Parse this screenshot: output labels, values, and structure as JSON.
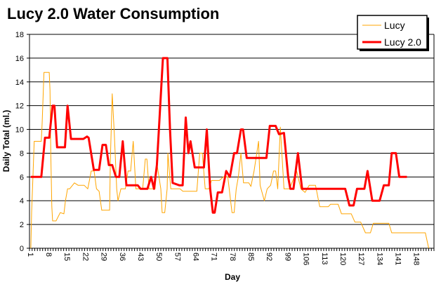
{
  "chart_data": {
    "type": "line",
    "title": "Lucy 2.0 Water Consumption",
    "xlabel": "Day",
    "ylabel": "Daily Total (ml.)",
    "ylim": [
      0,
      18
    ],
    "yticks": [
      0,
      2,
      4,
      6,
      8,
      10,
      12,
      14,
      16,
      18
    ],
    "xlim": [
      1,
      154
    ],
    "xticks": [
      1,
      8,
      15,
      22,
      29,
      36,
      43,
      50,
      57,
      64,
      71,
      78,
      85,
      92,
      99,
      106,
      113,
      120,
      127,
      134,
      141,
      148
    ],
    "grid": "horizontal",
    "legend_position": "top-right",
    "series": [
      {
        "name": "Lucy",
        "color": "#FFA500",
        "points": [
          [
            1,
            0
          ],
          [
            1.3,
            3
          ],
          [
            1.8,
            6
          ],
          [
            2.3,
            9
          ],
          [
            5,
            9
          ],
          [
            5.3,
            10.5
          ],
          [
            5.6,
            12.3
          ],
          [
            6,
            14.8
          ],
          [
            8,
            14.8
          ],
          [
            8.3,
            13.3
          ],
          [
            8.6,
            8
          ],
          [
            9,
            3.5
          ],
          [
            9.3,
            2.3
          ],
          [
            10.6,
            2.3
          ],
          [
            12.2,
            3
          ],
          [
            13.6,
            2.9
          ],
          [
            14.2,
            4
          ],
          [
            15,
            5
          ],
          [
            15.8,
            5
          ],
          [
            17.6,
            5.5
          ],
          [
            19,
            5.3
          ],
          [
            21.3,
            5.3
          ],
          [
            22.7,
            5
          ],
          [
            24,
            6.5
          ],
          [
            25.1,
            6.5
          ],
          [
            26,
            5
          ],
          [
            27,
            4.8
          ],
          [
            28,
            3.2
          ],
          [
            31,
            3.2
          ],
          [
            31.3,
            7.5
          ],
          [
            32,
            13
          ],
          [
            32.8,
            9.6
          ],
          [
            33.7,
            5
          ],
          [
            34.2,
            4
          ],
          [
            35.3,
            5
          ],
          [
            37,
            5
          ],
          [
            38,
            6.5
          ],
          [
            39,
            6.5
          ],
          [
            40,
            9
          ],
          [
            41,
            5
          ],
          [
            43.6,
            5
          ],
          [
            44.6,
            7.5
          ],
          [
            45.2,
            7.5
          ],
          [
            46,
            5
          ],
          [
            48.3,
            5
          ],
          [
            49.1,
            7
          ],
          [
            50.5,
            5
          ],
          [
            51,
            3
          ],
          [
            52,
            3
          ],
          [
            52.9,
            5
          ],
          [
            53.2,
            8
          ],
          [
            54.3,
            5
          ],
          [
            57.8,
            5
          ],
          [
            58.9,
            4.8
          ],
          [
            64.2,
            4.8
          ],
          [
            65.3,
            8
          ],
          [
            66.3,
            8
          ],
          [
            67.4,
            5
          ],
          [
            68.8,
            5
          ],
          [
            69.8,
            5.7
          ],
          [
            72.8,
            5.7
          ],
          [
            74.3,
            6
          ],
          [
            76,
            6
          ],
          [
            77.6,
            3
          ],
          [
            78.4,
            3
          ],
          [
            79.2,
            5
          ],
          [
            80,
            6
          ],
          [
            81,
            8
          ],
          [
            82,
            5.5
          ],
          [
            84,
            5.5
          ],
          [
            84.8,
            5.2
          ],
          [
            86,
            6.5
          ],
          [
            87.7,
            9
          ],
          [
            88.3,
            5.3
          ],
          [
            89.9,
            4
          ],
          [
            91,
            5
          ],
          [
            92.3,
            5.3
          ],
          [
            93.4,
            6.5
          ],
          [
            94.2,
            6.5
          ],
          [
            95,
            5
          ],
          [
            96,
            10.2
          ],
          [
            97.4,
            5
          ],
          [
            99.5,
            5
          ],
          [
            102.2,
            6.5
          ],
          [
            103.8,
            5
          ],
          [
            105.4,
            4.7
          ],
          [
            107,
            5.3
          ],
          [
            109.4,
            5.3
          ],
          [
            111,
            3.5
          ],
          [
            114.3,
            3.5
          ],
          [
            115.1,
            3.7
          ],
          [
            118,
            3.7
          ],
          [
            119.3,
            2.9
          ],
          [
            123,
            2.9
          ],
          [
            124.4,
            2.2
          ],
          [
            126.6,
            2.2
          ],
          [
            128.4,
            1.3
          ],
          [
            130.3,
            1.3
          ],
          [
            131.4,
            2.1
          ],
          [
            137.3,
            2.1
          ],
          [
            138.4,
            1.3
          ],
          [
            151.2,
            1.3
          ],
          [
            152.5,
            0
          ]
        ]
      },
      {
        "name": "Lucy 2.0",
        "color": "#FF0000",
        "points": [
          [
            1,
            6
          ],
          [
            5,
            6
          ],
          [
            6.4,
            9.3
          ],
          [
            8,
            9.3
          ],
          [
            9.3,
            12
          ],
          [
            10,
            12
          ],
          [
            11,
            8.5
          ],
          [
            14,
            8.5
          ],
          [
            15,
            12
          ],
          [
            16.3,
            9.2
          ],
          [
            21,
            9.2
          ],
          [
            22.4,
            9.4
          ],
          [
            23,
            9.3
          ],
          [
            25,
            6.6
          ],
          [
            27,
            6.6
          ],
          [
            28.3,
            8.7
          ],
          [
            29.6,
            8.7
          ],
          [
            30.7,
            7
          ],
          [
            32,
            7
          ],
          [
            33.4,
            6
          ],
          [
            34.7,
            6
          ],
          [
            36,
            9
          ],
          [
            37.4,
            5.3
          ],
          [
            41.7,
            5.3
          ],
          [
            42.8,
            5
          ],
          [
            45.4,
            5
          ],
          [
            46.8,
            6
          ],
          [
            47.9,
            5
          ],
          [
            49,
            7
          ],
          [
            51.3,
            16
          ],
          [
            53,
            16
          ],
          [
            54,
            10
          ],
          [
            55,
            5.5
          ],
          [
            57.5,
            5.3
          ],
          [
            58.8,
            5.3
          ],
          [
            60,
            11
          ],
          [
            61,
            8
          ],
          [
            61.8,
            9
          ],
          [
            63.4,
            6.8
          ],
          [
            66.9,
            6.8
          ],
          [
            68,
            10
          ],
          [
            69.3,
            5
          ],
          [
            70.3,
            3
          ],
          [
            71,
            3
          ],
          [
            72.2,
            4.7
          ],
          [
            73.8,
            4.7
          ],
          [
            75.4,
            6.5
          ],
          [
            76.8,
            6
          ],
          [
            78.4,
            8
          ],
          [
            79.5,
            8
          ],
          [
            81,
            10
          ],
          [
            81.8,
            10
          ],
          [
            83.2,
            7.6
          ],
          [
            90.7,
            7.6
          ],
          [
            92,
            10.3
          ],
          [
            94.2,
            10.3
          ],
          [
            95.5,
            9.6
          ],
          [
            97.4,
            9.7
          ],
          [
            99,
            6
          ],
          [
            99.8,
            5
          ],
          [
            101,
            5
          ],
          [
            102.7,
            8
          ],
          [
            104.3,
            5
          ],
          [
            120.7,
            5
          ],
          [
            122.3,
            3.6
          ],
          [
            123.9,
            3.6
          ],
          [
            125.2,
            5
          ],
          [
            128,
            5
          ],
          [
            129.2,
            6.5
          ],
          [
            131,
            4
          ],
          [
            133.8,
            4
          ],
          [
            135.4,
            5.3
          ],
          [
            137.3,
            5.3
          ],
          [
            138.4,
            8
          ],
          [
            140,
            8
          ],
          [
            141.3,
            6
          ],
          [
            144.2,
            6
          ]
        ]
      }
    ]
  }
}
